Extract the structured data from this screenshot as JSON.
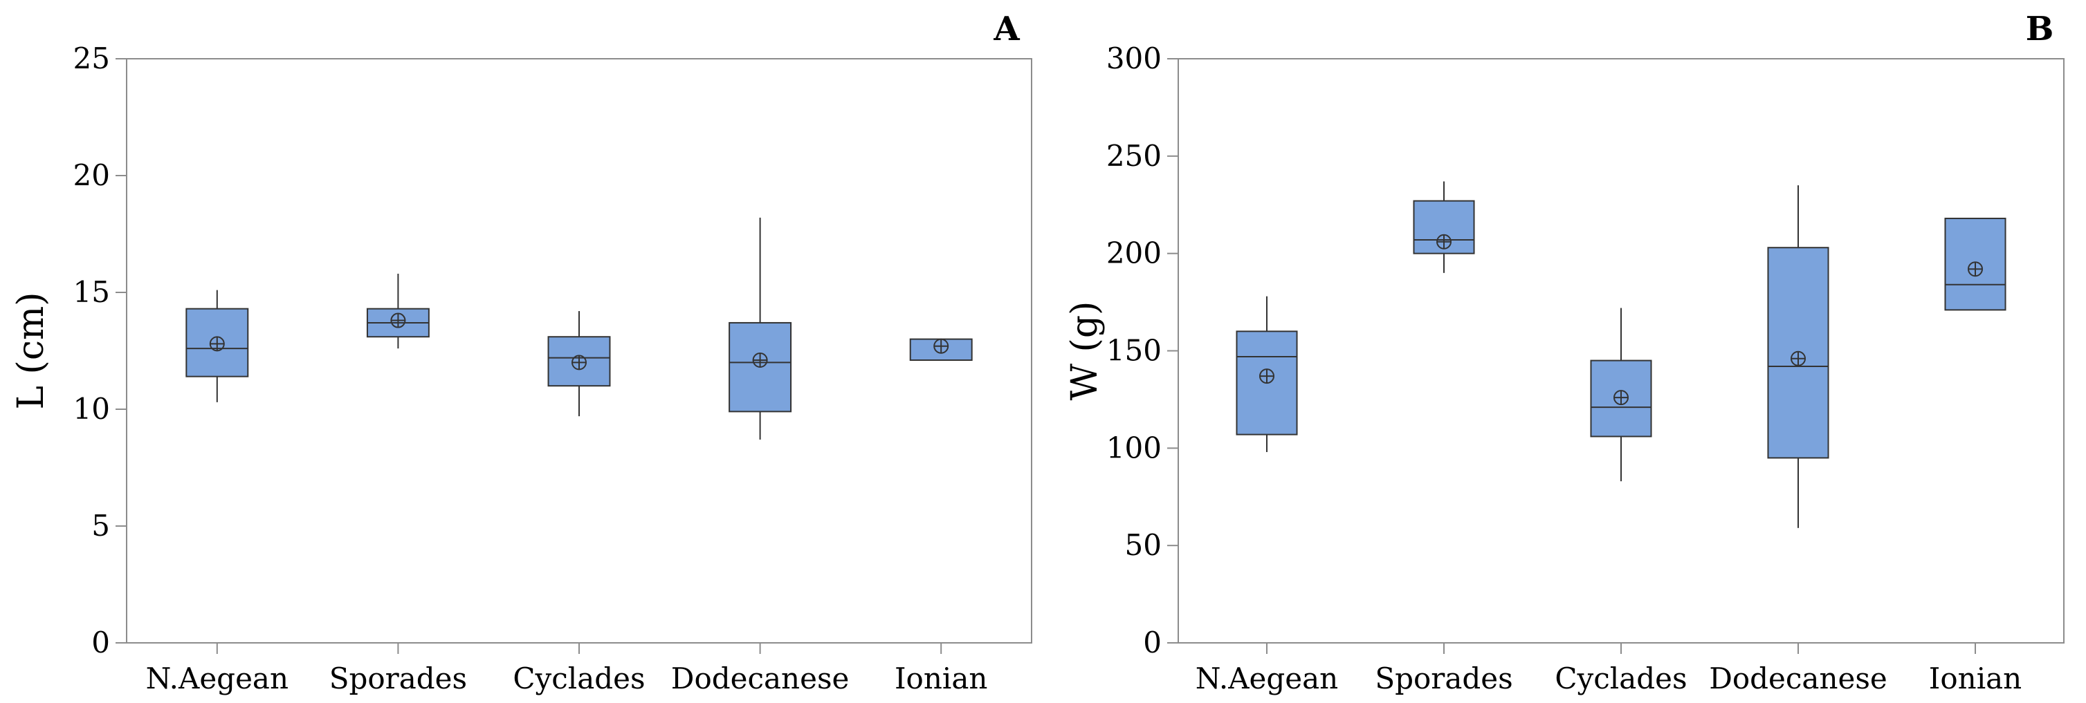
{
  "chart_data": [
    {
      "type": "box",
      "panel_label": "A",
      "ylabel": "L (cm)",
      "xlabel": "",
      "ylim": [
        0,
        25
      ],
      "yticks": [
        "0",
        "5",
        "10",
        "15",
        "20",
        "25"
      ],
      "ytick_values": [
        0,
        5,
        10,
        15,
        20,
        25
      ],
      "categories": [
        "N.Aegean",
        "Sporades",
        "Cyclades",
        "Dodecanese",
        "Ionian"
      ],
      "boxes": [
        {
          "category": "N.Aegean",
          "whisker_low": 10.3,
          "q1": 11.4,
          "median": 12.6,
          "q3": 14.3,
          "whisker_high": 15.1,
          "mean": 12.8
        },
        {
          "category": "Sporades",
          "whisker_low": 12.6,
          "q1": 13.1,
          "median": 13.7,
          "q3": 14.3,
          "whisker_high": 15.8,
          "mean": 13.8
        },
        {
          "category": "Cyclades",
          "whisker_low": 9.7,
          "q1": 11.0,
          "median": 12.2,
          "q3": 13.1,
          "whisker_high": 14.2,
          "mean": 12.0
        },
        {
          "category": "Dodecanese",
          "whisker_low": 8.7,
          "q1": 9.9,
          "median": 12.0,
          "q3": 13.7,
          "whisker_high": 18.2,
          "mean": 12.1
        },
        {
          "category": "Ionian",
          "whisker_low": 12.1,
          "q1": 12.1,
          "median": 12.1,
          "q3": 13.0,
          "whisker_high": 13.0,
          "mean": 12.7
        }
      ],
      "box_color": "#7ba3dc",
      "grid": false
    },
    {
      "type": "box",
      "panel_label": "B",
      "ylabel": "W (g)",
      "xlabel": "",
      "ylim": [
        0,
        300
      ],
      "yticks": [
        "0",
        "50",
        "100",
        "150",
        "200",
        "250",
        "300"
      ],
      "ytick_values": [
        0,
        50,
        100,
        150,
        200,
        250,
        300
      ],
      "categories": [
        "N.Aegean",
        "Sporades",
        "Cyclades",
        "Dodecanese",
        "Ionian"
      ],
      "boxes": [
        {
          "category": "N.Aegean",
          "whisker_low": 98,
          "q1": 107,
          "median": 147,
          "q3": 160,
          "whisker_high": 178,
          "mean": 137
        },
        {
          "category": "Sporades",
          "whisker_low": 190,
          "q1": 200,
          "median": 207,
          "q3": 227,
          "whisker_high": 237,
          "mean": 206
        },
        {
          "category": "Cyclades",
          "whisker_low": 83,
          "q1": 106,
          "median": 121,
          "q3": 145,
          "whisker_high": 172,
          "mean": 126
        },
        {
          "category": "Dodecanese",
          "whisker_low": 59,
          "q1": 95,
          "median": 142,
          "q3": 203,
          "whisker_high": 235,
          "mean": 146
        },
        {
          "category": "Ionian",
          "whisker_low": 171,
          "q1": 171,
          "median": 184,
          "q3": 218,
          "whisker_high": 218,
          "mean": 192
        }
      ],
      "box_color": "#7ba3dc",
      "grid": false
    }
  ]
}
